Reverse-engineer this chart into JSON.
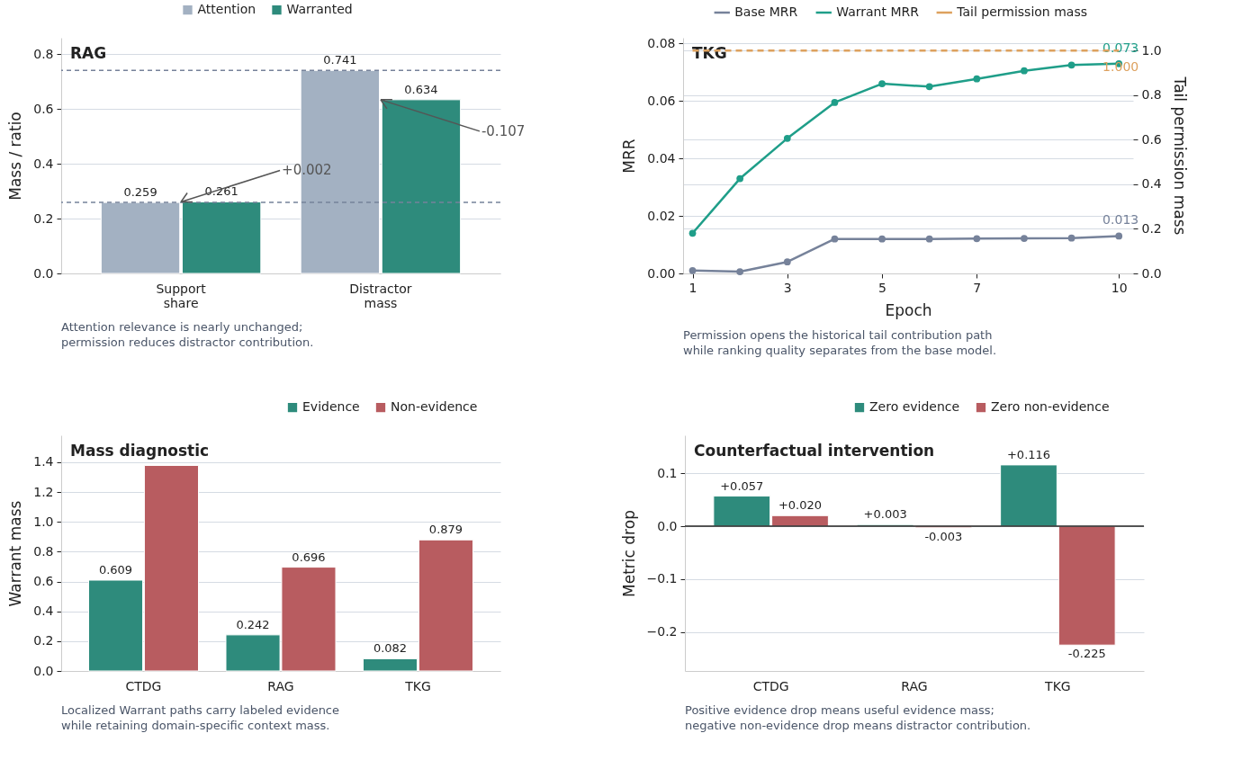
{
  "chart_data": [
    {
      "type": "bar",
      "title": "RAG",
      "ylabel": "Mass / ratio",
      "categories": [
        "Support\nshare",
        "Distractor\nmass"
      ],
      "series": [
        {
          "name": "Attention",
          "color": "#a3b1c2",
          "values": [
            0.259,
            0.741
          ]
        },
        {
          "name": "Warranted",
          "color": "#2e8b7c",
          "values": [
            0.261,
            0.634
          ]
        }
      ],
      "ylim": [
        0,
        0.86
      ],
      "yticks": [
        {
          "value": 0,
          "label": "0.0"
        },
        0.2,
        0.4,
        0.6,
        0.8
      ],
      "grid": "y",
      "legend": "top",
      "data_labels": true,
      "ref_lines": [
        {
          "axis": "y",
          "value": 0.259,
          "color": "#76829a",
          "line_style": "dashed"
        },
        {
          "axis": "y",
          "value": 0.741,
          "color": "#76829a",
          "line_style": "dashed"
        }
      ],
      "annotations": [
        {
          "text": "+0.002",
          "x": "Support\nshare",
          "y": 0.261
        },
        {
          "text": "-0.107",
          "x": "Distractor\nmass",
          "y": 0.634
        },
        "Attention relevance is nearly unchanged;\npermission reduces distractor contribution."
      ]
    },
    {
      "type": "line",
      "title": "TKG",
      "xlabel": "Epoch",
      "ylabel": "MRR",
      "y2label": "Tail permission mass",
      "x": [
        1,
        2,
        3,
        4,
        5,
        6,
        7,
        8,
        9,
        10
      ],
      "series": [
        {
          "name": "Base MRR",
          "color": "#76829a",
          "values": [
            0.001,
            0.0006,
            0.004,
            0.012,
            0.012,
            0.012,
            0.0121,
            0.0122,
            0.0123,
            0.013
          ],
          "value_labels": [
            null,
            null,
            null,
            null,
            null,
            null,
            null,
            null,
            null,
            "0.013"
          ]
        },
        {
          "name": "Warrant MRR",
          "color": "#1f9e89",
          "values": [
            0.014,
            0.033,
            0.047,
            0.0595,
            0.066,
            0.065,
            0.0677,
            0.0705,
            0.0725,
            0.073
          ],
          "value_labels": [
            null,
            null,
            null,
            null,
            null,
            null,
            null,
            null,
            null,
            "0.073"
          ]
        },
        {
          "name": "Tail permission mass",
          "color": "#dda15e",
          "axis": "y2",
          "marker": "none",
          "line_style": "dashed",
          "values": [
            1,
            1,
            1,
            1,
            1,
            1,
            1,
            1,
            1,
            1
          ],
          "value_labels": [
            null,
            null,
            null,
            null,
            null,
            null,
            null,
            null,
            null,
            "1.000"
          ]
        }
      ],
      "xlim": [
        0.8,
        10.3
      ],
      "xticks": [
        1,
        3,
        5,
        7,
        10
      ],
      "ylim": [
        0,
        0.082
      ],
      "yticks": [
        {
          "value": 0,
          "label": "0.00"
        },
        0.02,
        0.04,
        0.06,
        0.08
      ],
      "y2lim": [
        0,
        1.057
      ],
      "y2ticks": [
        {
          "value": 0,
          "label": "0.0"
        },
        0.2,
        0.4,
        0.6,
        0.8,
        {
          "value": 1,
          "label": "1.0"
        }
      ],
      "grid": true,
      "legend": "top",
      "marker": "circle",
      "line_style": "solid",
      "annotations": [
        "Permission opens the historical tail contribution path\nwhile ranking quality separates from the base model."
      ]
    },
    {
      "type": "bar",
      "title": "Mass diagnostic",
      "ylabel": "Warrant mass",
      "categories": [
        "CTDG",
        "RAG",
        "TKG"
      ],
      "series": [
        {
          "name": "Evidence",
          "color": "#2e8b7c",
          "values": [
            0.609,
            0.242,
            0.082
          ],
          "value_labels": [
            "0.609",
            "0.242",
            "0.082"
          ]
        },
        {
          "name": "Non-evidence",
          "color": "#b85c60",
          "values": [
            1.378,
            0.696,
            0.879
          ],
          "value_labels": [
            null,
            "0.696",
            "0.879"
          ]
        }
      ],
      "ylim": [
        0,
        1.58
      ],
      "yticks": [
        {
          "value": 0,
          "label": "0.0"
        },
        0.2,
        0.4,
        0.6,
        0.8,
        {
          "value": 1,
          "label": "1.0"
        },
        1.2,
        1.4
      ],
      "grid": "y",
      "legend": "top right",
      "annotations": [
        "Localized Warrant paths carry labeled evidence\nwhile retaining domain-specific context mass."
      ]
    },
    {
      "type": "bar",
      "title": "Counterfactual intervention",
      "ylabel": "Metric drop",
      "categories": [
        "CTDG",
        "RAG",
        "TKG"
      ],
      "series": [
        {
          "name": "Zero evidence",
          "color": "#2e8b7c",
          "values": [
            0.057,
            0.003,
            0.116
          ],
          "value_labels": [
            "+0.057",
            "+0.003",
            "+0.116"
          ]
        },
        {
          "name": "Zero non-evidence",
          "color": "#b85c60",
          "values": [
            0.02,
            -0.003,
            -0.225
          ],
          "value_labels": [
            "+0.020",
            "-0.003",
            "-0.225"
          ]
        }
      ],
      "ylim": [
        -0.274,
        0.172
      ],
      "yticks": [
        {
          "value": -0.2,
          "label": "−0.2"
        },
        {
          "value": -0.1,
          "label": "−0.1"
        },
        {
          "value": 0,
          "label": "0.0"
        },
        0.1
      ],
      "grid": "y",
      "legend": "top right",
      "ref_lines": [
        {
          "axis": "y",
          "value": 0,
          "color": "#222222"
        }
      ],
      "annotations": [
        "Positive evidence drop means useful evidence mass;\nnegative non-evidence drop means distractor contribution."
      ]
    }
  ]
}
